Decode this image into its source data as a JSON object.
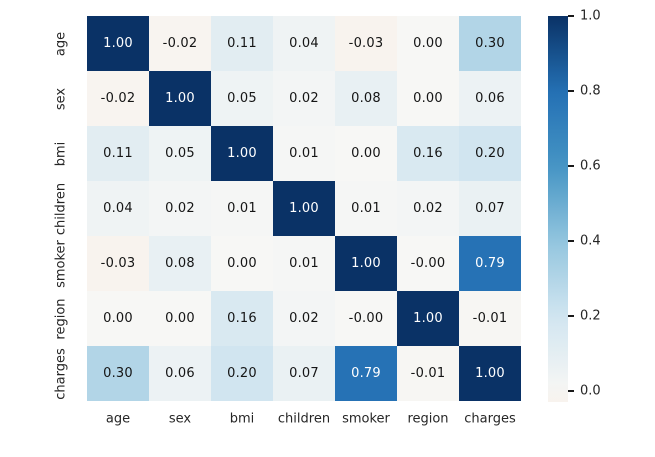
{
  "chart_data": {
    "type": "heatmap",
    "title": "",
    "xlabel": "",
    "ylabel": "",
    "categories": [
      "age",
      "sex",
      "bmi",
      "children",
      "smoker",
      "region",
      "charges"
    ],
    "matrix": [
      [
        "1.00",
        "-0.02",
        "0.11",
        "0.04",
        "-0.03",
        "0.00",
        "0.30"
      ],
      [
        "-0.02",
        "1.00",
        "0.05",
        "0.02",
        "0.08",
        "0.00",
        "0.06"
      ],
      [
        "0.11",
        "0.05",
        "1.00",
        "0.01",
        "0.00",
        "0.16",
        "0.20"
      ],
      [
        "0.04",
        "0.02",
        "0.01",
        "1.00",
        "0.01",
        "0.02",
        "0.07"
      ],
      [
        "-0.03",
        "0.08",
        "0.00",
        "0.01",
        "1.00",
        "-0.00",
        "0.79"
      ],
      [
        "0.00",
        "0.00",
        "0.16",
        "0.02",
        "-0.00",
        "1.00",
        "-0.01"
      ],
      [
        "0.30",
        "0.06",
        "0.20",
        "0.07",
        "0.79",
        "-0.01",
        "1.00"
      ]
    ],
    "vmin": -0.03,
    "vmax": 1.0,
    "grid": false,
    "legend_position": "right",
    "colorbar_ticks": [
      {
        "label": "1.0",
        "value": 1.0
      },
      {
        "label": "0.8",
        "value": 0.8
      },
      {
        "label": "0.6",
        "value": 0.6
      },
      {
        "label": "0.4",
        "value": 0.4
      },
      {
        "label": "0.2",
        "value": 0.2
      },
      {
        "label": "0.0",
        "value": 0.0
      }
    ],
    "colormap": {
      "name": "RdBu centered at 0",
      "cmin": 0.485,
      "cmax": 1.0,
      "anchors": [
        {
          "pos": 0.4,
          "color": "#fddbc7"
        },
        {
          "pos": 0.5,
          "color": "#f7f7f5"
        },
        {
          "pos": 0.6,
          "color": "#d1e5f0"
        },
        {
          "pos": 0.7,
          "color": "#92c5de"
        },
        {
          "pos": 0.8,
          "color": "#4594c4"
        },
        {
          "pos": 0.9,
          "color": "#2470b4"
        },
        {
          "pos": 1.0,
          "color": "#0a3266"
        }
      ]
    },
    "colors": {
      "annotation_dark_text": "#151515",
      "annotation_light_text": "#ffffff",
      "axis_text": "#262626",
      "tick_mark": "#1a1a1a",
      "background": "#ffffff"
    }
  }
}
